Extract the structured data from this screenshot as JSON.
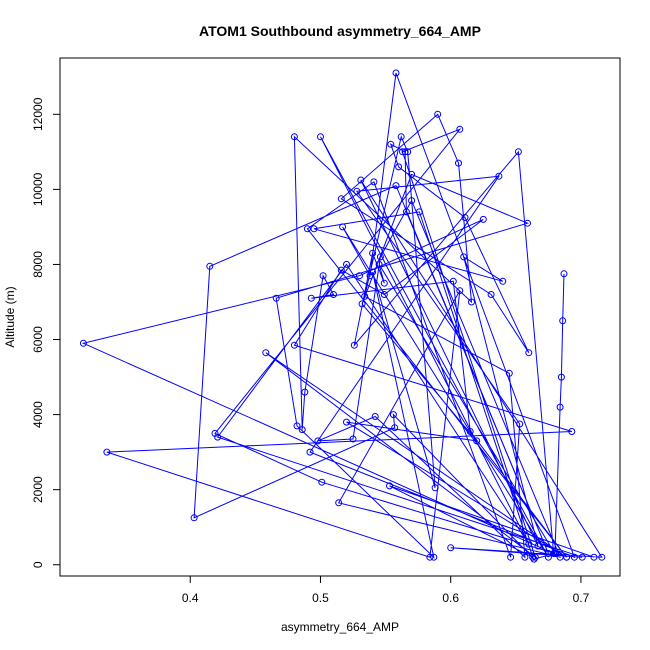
{
  "chart_data": {
    "type": "line",
    "title": "ATOM1 Southbound asymmetry_664_AMP",
    "xlabel": "asymmetry_664_AMP",
    "ylabel": "Altitude (m)",
    "xlim": [
      0.3,
      0.73
    ],
    "ylim": [
      -300,
      13500
    ],
    "xticks": [
      0.4,
      0.5,
      0.6,
      0.7
    ],
    "xtick_labels": [
      "0.4",
      "0.5",
      "0.6",
      "0.7"
    ],
    "yticks": [
      0,
      2000,
      4000,
      6000,
      8000,
      10000,
      12000
    ],
    "ytick_labels": [
      "0",
      "2000",
      "4000",
      "6000",
      "8000",
      "10000",
      "12000"
    ],
    "grid": false,
    "series": [
      {
        "color": "#0000ff",
        "marker": "open-circle",
        "x": [
          0.687,
          0.686,
          0.685,
          0.684,
          0.68,
          0.664,
          0.556,
          0.557,
          0.403,
          0.415,
          0.558,
          0.675,
          0.566,
          0.565,
          0.554,
          0.56,
          0.611,
          0.66,
          0.631,
          0.516,
          0.59,
          0.606,
          0.616,
          0.48,
          0.486,
          0.488,
          0.502,
          0.51,
          0.493,
          0.602,
          0.615,
          0.689,
          0.52,
          0.62,
          0.532,
          0.57,
          0.659,
          0.466,
          0.482,
          0.587,
          0.54,
          0.588,
          0.567,
          0.562,
          0.534,
          0.645,
          0.657,
          0.542,
          0.498,
          0.525,
          0.546,
          0.57,
          0.684,
          0.514,
          0.607,
          0.584,
          0.336,
          0.693,
          0.48,
          0.516,
          0.549,
          0.625,
          0.53,
          0.318,
          0.679,
          0.652,
          0.526,
          0.54,
          0.549,
          0.545,
          0.68,
          0.501,
          0.419,
          0.607,
          0.563,
          0.665,
          0.458,
          0.689,
          0.49,
          0.541,
          0.646,
          0.653,
          0.528,
          0.637,
          0.492,
          0.695,
          0.558,
          0.538,
          0.517,
          0.675,
          0.5,
          0.66,
          0.52,
          0.421,
          0.701,
          0.6,
          0.716,
          0.531,
          0.667,
          0.61,
          0.64,
          0.495,
          0.576,
          0.663,
          0.553,
          0.71
        ],
        "y": [
          7750,
          6500,
          5000,
          4200,
          300,
          150,
          4000,
          3650,
          1250,
          7950,
          10100,
          300,
          9400,
          11000,
          11200,
          10600,
          9250,
          5650,
          7200,
          9750,
          12000,
          10700,
          7000,
          11400,
          3600,
          4600,
          7700,
          7200,
          7100,
          7550,
          3550,
          200,
          3800,
          3300,
          6950,
          10400,
          9100,
          7100,
          3700,
          200,
          7800,
          2050,
          11000,
          11400,
          7150,
          5100,
          200,
          3950,
          3300,
          3350,
          8200,
          9700,
          200,
          1650,
          7300,
          200,
          3000,
          3550,
          5850,
          7850,
          7200,
          9200,
          7700,
          5900,
          300,
          11000,
          5850,
          8300,
          7500,
          8000,
          300,
          2200,
          3500,
          11600,
          11000,
          200,
          5650,
          200,
          8950,
          10200,
          200,
          3750,
          9950,
          10350,
          3000,
          200,
          13100,
          7700,
          9000,
          200,
          11400,
          550,
          8000,
          3400,
          200,
          450,
          200,
          10250,
          500,
          8200,
          7550,
          8950,
          9400,
          200,
          2100,
          200
        ]
      }
    ]
  }
}
